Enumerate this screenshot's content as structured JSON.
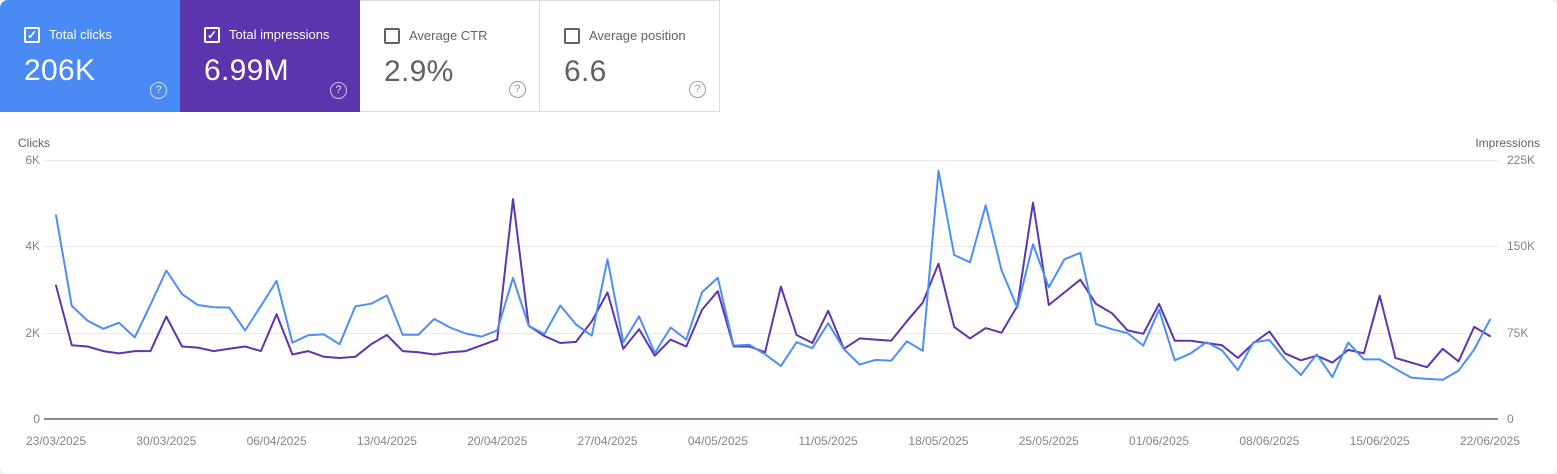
{
  "cards": [
    {
      "label": "Total clicks",
      "value": "206K",
      "checked": true,
      "bg": "#4a8af4",
      "text_color": "#ffffff"
    },
    {
      "label": "Total impressions",
      "value": "6.99M",
      "checked": true,
      "bg": "#5c34ae",
      "text_color": "#ffffff"
    },
    {
      "label": "Average CTR",
      "value": "2.9%",
      "checked": false,
      "bg": "#ffffff",
      "text_color": "#5f6368"
    },
    {
      "label": "Average position",
      "value": "6.6",
      "checked": false,
      "bg": "#ffffff",
      "text_color": "#5f6368"
    }
  ],
  "chart_data": {
    "type": "line",
    "x_start": "23/03/2025",
    "x_end": "22/06/2025",
    "x_points": 92,
    "x_tick_labels": [
      "23/03/2025",
      "30/03/2025",
      "06/04/2025",
      "13/04/2025",
      "20/04/2025",
      "27/04/2025",
      "04/05/2025",
      "11/05/2025",
      "18/05/2025",
      "25/05/2025",
      "01/06/2025",
      "08/06/2025",
      "15/06/2025",
      "22/06/2025"
    ],
    "grid": "horizontal",
    "left_axis": {
      "label": "Clicks",
      "ticks": [
        "6K",
        "4K",
        "2K",
        "0"
      ],
      "max": 6000
    },
    "right_axis": {
      "label": "Impressions",
      "ticks": [
        "225K",
        "150K",
        "75K",
        "0"
      ],
      "max": 225000
    },
    "series": [
      {
        "name": "Total clicks",
        "axis": "left",
        "color": "#4d8ef7",
        "values": [
          4720,
          2620,
          2280,
          2090,
          2230,
          1890,
          2650,
          3440,
          2890,
          2640,
          2590,
          2580,
          2050,
          2620,
          3200,
          1770,
          1940,
          1960,
          1730,
          2610,
          2670,
          2860,
          1950,
          1950,
          2320,
          2120,
          1980,
          1910,
          2050,
          3270,
          2160,
          1970,
          2630,
          2190,
          1930,
          3700,
          1780,
          2380,
          1530,
          2120,
          1840,
          2940,
          3270,
          1700,
          1720,
          1500,
          1230,
          1780,
          1640,
          2220,
          1620,
          1260,
          1370,
          1350,
          1800,
          1580,
          5750,
          3800,
          3630,
          4950,
          3450,
          2580,
          4050,
          3050,
          3700,
          3850,
          2200,
          2080,
          1990,
          1700,
          2530,
          1360,
          1520,
          1780,
          1590,
          1130,
          1780,
          1830,
          1380,
          1020,
          1500,
          970,
          1770,
          1380,
          1380,
          1160,
          960,
          930,
          910,
          1120,
          1610,
          2300
        ]
      },
      {
        "name": "Total impressions",
        "axis": "right",
        "color": "#5e35b1",
        "values": [
          116000,
          64000,
          63000,
          59000,
          57000,
          59000,
          59000,
          89000,
          63000,
          62000,
          59000,
          61000,
          63000,
          59000,
          91000,
          56000,
          59000,
          54000,
          53000,
          54000,
          65000,
          73000,
          59000,
          58000,
          56000,
          58000,
          59000,
          64000,
          69000,
          191000,
          81000,
          72000,
          66000,
          67000,
          85000,
          110000,
          61000,
          78000,
          55000,
          69000,
          63000,
          95000,
          111000,
          63000,
          63000,
          58000,
          115000,
          73000,
          66000,
          94000,
          61000,
          70000,
          69000,
          68000,
          85000,
          101000,
          135000,
          80000,
          70000,
          79000,
          75000,
          98000,
          188000,
          99000,
          110000,
          121000,
          100000,
          92000,
          77000,
          74000,
          100000,
          68000,
          68000,
          66000,
          64000,
          53000,
          66000,
          76000,
          57000,
          51000,
          55000,
          49000,
          60000,
          57000,
          107000,
          53000,
          49000,
          45000,
          61000,
          50000,
          80000,
          72000
        ]
      }
    ]
  }
}
